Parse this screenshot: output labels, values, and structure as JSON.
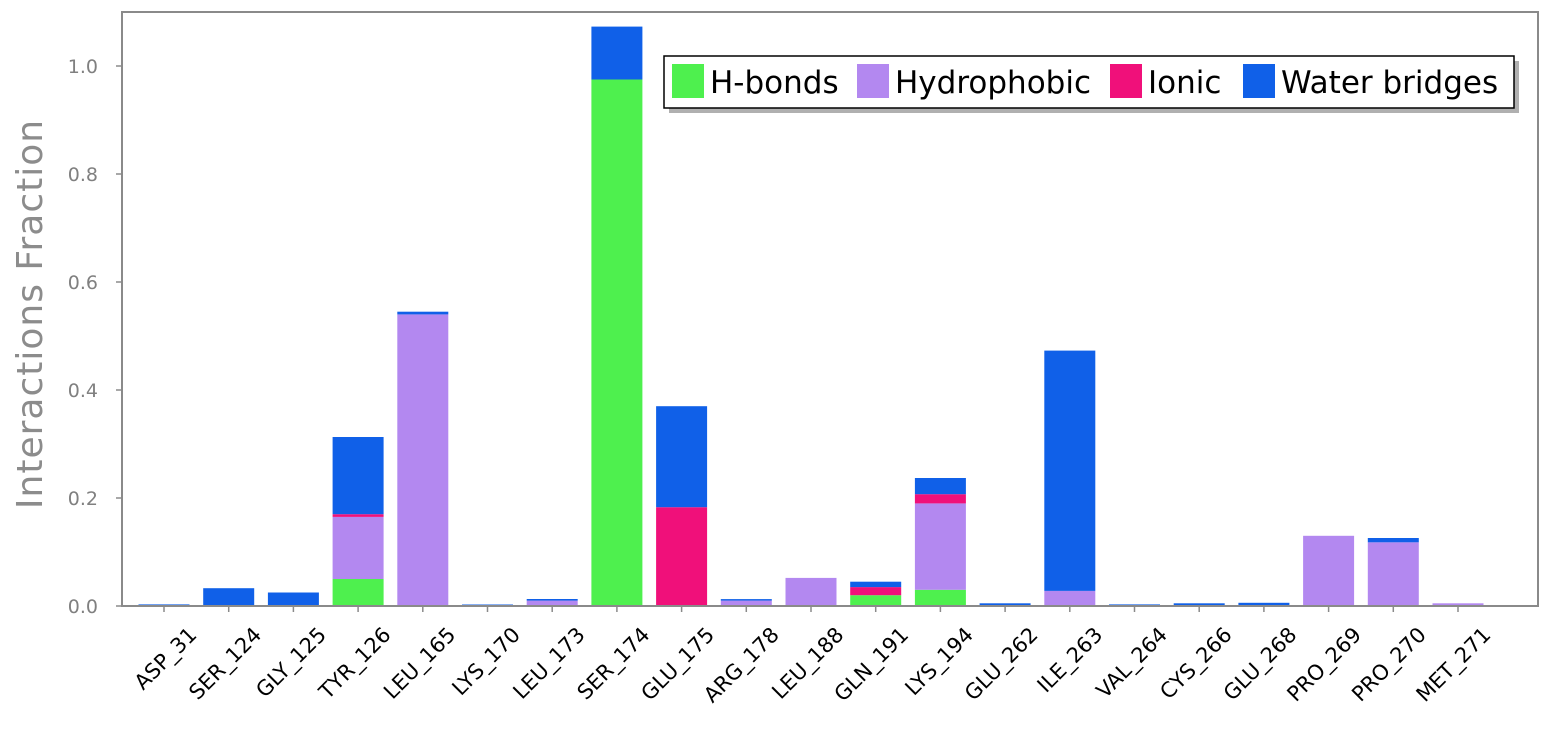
{
  "chart_data": {
    "type": "bar",
    "stacked": true,
    "title": "",
    "xlabel": "",
    "ylabel": "Interactions Fraction",
    "ylim": [
      0,
      1.1
    ],
    "yticks": [
      0.0,
      0.2,
      0.4,
      0.6,
      0.8,
      1.0
    ],
    "ytick_labels": [
      "0.0",
      "0.2",
      "0.4",
      "0.6",
      "0.8",
      "1.0"
    ],
    "grid": false,
    "legend_position": "top-right",
    "categories": [
      "ASP_31",
      "SER_124",
      "GLY_125",
      "TYR_126",
      "LEU_165",
      "LYS_170",
      "LEU_173",
      "SER_174",
      "GLU_175",
      "ARG_178",
      "LEU_188",
      "GLN_191",
      "LYS_194",
      "GLU_262",
      "ILE_263",
      "VAL_264",
      "CYS_266",
      "GLU_268",
      "PRO_269",
      "PRO_270",
      "MET_271"
    ],
    "series": [
      {
        "name": "H-bonds",
        "color": "#4ef04e",
        "values": [
          0.0,
          0.0,
          0.0,
          0.05,
          0.0,
          0.0,
          0.0,
          0.975,
          0.0,
          0.0,
          0.0,
          0.02,
          0.03,
          0.0,
          0.0,
          0.0,
          0.0,
          0.0,
          0.0,
          0.0,
          0.0
        ]
      },
      {
        "name": "Hydrophobic",
        "color": "#b388f0",
        "values": [
          0.0,
          0.0,
          0.0,
          0.115,
          0.54,
          0.0,
          0.01,
          0.0,
          0.0,
          0.01,
          0.052,
          0.0,
          0.16,
          0.0,
          0.028,
          0.0,
          0.0,
          0.0,
          0.13,
          0.118,
          0.005
        ]
      },
      {
        "name": "Ionic",
        "color": "#f0107a",
        "values": [
          0.0,
          0.0,
          0.0,
          0.005,
          0.0,
          0.0,
          0.0,
          0.0,
          0.183,
          0.0,
          0.0,
          0.015,
          0.017,
          0.0,
          0.0,
          0.0,
          0.0,
          0.0,
          0.0,
          0.0,
          0.0
        ]
      },
      {
        "name": "Water bridges",
        "color": "#1060e8",
        "values": [
          0.003,
          0.033,
          0.025,
          0.143,
          0.005,
          0.002,
          0.003,
          0.098,
          0.187,
          0.002,
          0.0,
          0.01,
          0.03,
          0.005,
          0.445,
          0.003,
          0.005,
          0.006,
          0.0,
          0.008,
          0.0
        ]
      }
    ]
  }
}
